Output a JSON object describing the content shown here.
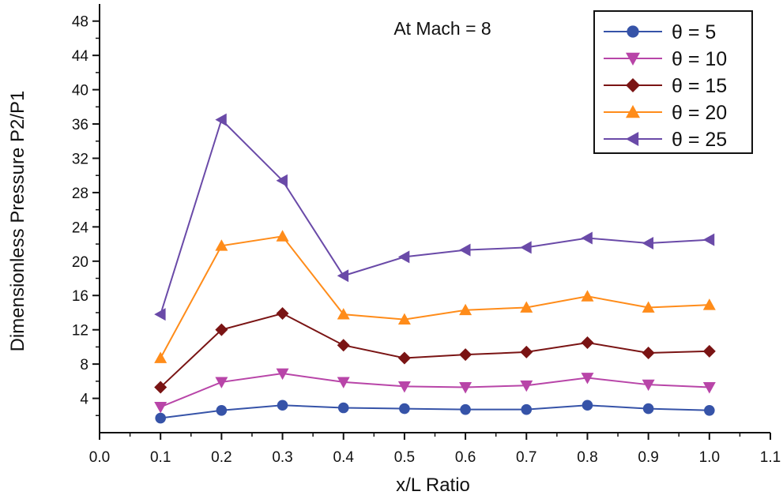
{
  "chart_data": {
    "type": "line",
    "title": "",
    "annotation": "At Mach = 8",
    "xlabel": "x/L Ratio",
    "ylabel": "Dimensionless Pressure P2/P1",
    "xlim": [
      0.0,
      1.1
    ],
    "ylim": [
      0,
      50
    ],
    "x_ticks": [
      0.0,
      0.1,
      0.2,
      0.3,
      0.4,
      0.5,
      0.6,
      0.7,
      0.8,
      0.9,
      1.0,
      1.1
    ],
    "x_tick_labels": [
      "0.0",
      "0.1",
      "0.2",
      "0.3",
      "0.4",
      "0.5",
      "0.6",
      "0.7",
      "0.8",
      "0.9",
      "1.0",
      "1.1"
    ],
    "y_ticks": [
      4,
      8,
      12,
      16,
      20,
      24,
      28,
      32,
      36,
      40,
      44,
      48
    ],
    "y_tick_labels": [
      "4",
      "8",
      "12",
      "16",
      "20",
      "24",
      "28",
      "32",
      "36",
      "40",
      "44",
      "48"
    ],
    "grid": false,
    "legend_position": "top-right",
    "x": [
      0.1,
      0.2,
      0.3,
      0.4,
      0.5,
      0.6,
      0.7,
      0.8,
      0.9,
      1.0
    ],
    "series": [
      {
        "name": "θ = 5",
        "color": "#3653a8",
        "marker": "circle",
        "values": [
          1.7,
          2.6,
          3.2,
          2.9,
          2.8,
          2.7,
          2.7,
          3.2,
          2.8,
          2.6
        ]
      },
      {
        "name": "θ = 10",
        "color": "#b845a8",
        "marker": "triangle-down",
        "values": [
          3.0,
          5.9,
          6.9,
          5.9,
          5.4,
          5.3,
          5.5,
          6.4,
          5.6,
          5.3
        ]
      },
      {
        "name": "θ = 15",
        "color": "#7a1414",
        "marker": "diamond",
        "values": [
          5.3,
          12.0,
          13.9,
          10.2,
          8.7,
          9.1,
          9.4,
          10.5,
          9.3,
          9.5
        ]
      },
      {
        "name": "θ = 20",
        "color": "#ff8c1a",
        "marker": "triangle-up",
        "values": [
          8.7,
          21.8,
          22.9,
          13.8,
          13.2,
          14.3,
          14.6,
          15.9,
          14.6,
          14.9
        ]
      },
      {
        "name": "θ = 25",
        "color": "#6a4aa8",
        "marker": "triangle-left",
        "values": [
          13.8,
          36.5,
          29.4,
          18.3,
          20.5,
          21.3,
          21.6,
          22.7,
          22.1,
          22.5
        ]
      }
    ]
  }
}
